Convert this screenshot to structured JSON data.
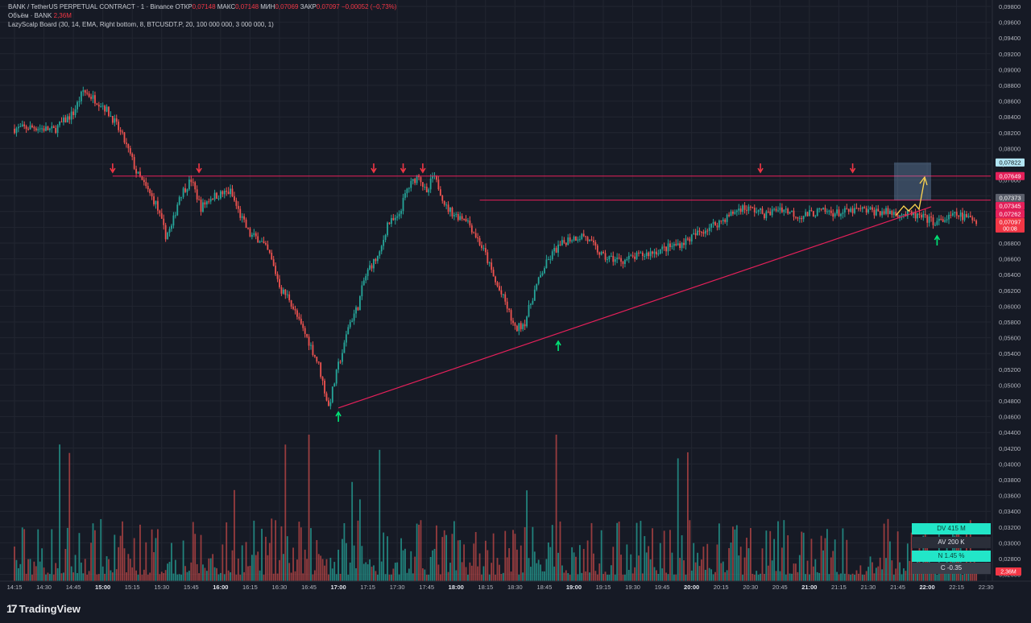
{
  "header": {
    "symbol_line": "BANK / TetherUS PERPETUAL CONTRACT · 1 · Binance",
    "open_label": "ОТКР",
    "open_value": "0,07148",
    "high_label": "МАКС",
    "high_value": "0,07148",
    "low_label": "МИН",
    "low_value": "0,07069",
    "close_label": "ЗАКР",
    "close_value": "0,07097",
    "change": "−0,00052 (−0,73%)",
    "volume_label": "Объём · BANK",
    "volume_value": "2,36M",
    "indicator_line": "LazyScalp Board (30, 14, EMA, Right bottom, 8, BTCUSDT.P, 20, 100 000 000, 3 000 000, 1)"
  },
  "chart_data": {
    "type": "candlestick",
    "symbol": "BANK / TetherUS PERPETUAL CONTRACT",
    "interval": "1",
    "exchange": "Binance",
    "ylim": [
      0.0445,
      0.099
    ],
    "y_ticks": [
      "0,09800",
      "0,09600",
      "0,09400",
      "0,09200",
      "0,09000",
      "0,08800",
      "0,08600",
      "0,08400",
      "0,08200",
      "0,08000",
      "0,07800",
      "0,07600",
      "0,07400",
      "0,07200",
      "0,07000",
      "0,06800",
      "0,06600",
      "0,06400",
      "0,06200",
      "0,06000",
      "0,05800",
      "0,05600",
      "0,05400",
      "0,05200",
      "0,05000",
      "0,04800",
      "0,04600",
      "0,04400",
      "0,04200",
      "0,04000",
      "0,03800",
      "0,03600",
      "0,03400",
      "0,03200",
      "0,03000",
      "0,02800",
      "0,02600"
    ],
    "x_ticks": [
      "14:15",
      "14:30",
      "14:45",
      "15:00",
      "15:15",
      "15:30",
      "15:45",
      "16:00",
      "16:15",
      "16:30",
      "16:45",
      "17:00",
      "17:15",
      "17:30",
      "17:45",
      "18:00",
      "18:15",
      "18:30",
      "18:45",
      "19:00",
      "19:15",
      "19:30",
      "19:45",
      "20:00",
      "20:15",
      "20:30",
      "20:45",
      "21:00",
      "21:15",
      "21:30",
      "21:45",
      "22:00",
      "22:15",
      "22:30"
    ],
    "bold_x_ticks": [
      "15:00",
      "16:00",
      "17:00",
      "18:00",
      "19:00",
      "20:00",
      "21:00",
      "22:00"
    ],
    "price_path_minutes": [
      0,
      10,
      20,
      30,
      35,
      45,
      50,
      55,
      60,
      62,
      67,
      72,
      77,
      80,
      84,
      90,
      95,
      100,
      105,
      110,
      115,
      120,
      125,
      130,
      136,
      140,
      145,
      150,
      155,
      160,
      165,
      168,
      170,
      175,
      178,
      181,
      186,
      190,
      195,
      200,
      206,
      210,
      213,
      216,
      220,
      225,
      230,
      236,
      240,
      245,
      250,
      255,
      260,
      265,
      270,
      275,
      282,
      290,
      300,
      310,
      320,
      330,
      340,
      350,
      360,
      370,
      377,
      383,
      390,
      400,
      410,
      420,
      430,
      440,
      450,
      460,
      465,
      470,
      480,
      485,
      490
    ],
    "price_path_values": [
      0.0825,
      0.0827,
      0.0823,
      0.0845,
      0.0873,
      0.0855,
      0.0838,
      0.0815,
      0.0785,
      0.077,
      0.075,
      0.073,
      0.069,
      0.07,
      0.074,
      0.076,
      0.0725,
      0.0738,
      0.0742,
      0.0745,
      0.0715,
      0.069,
      0.0685,
      0.0665,
      0.062,
      0.061,
      0.058,
      0.0555,
      0.0525,
      0.0472,
      0.0525,
      0.055,
      0.0575,
      0.06,
      0.0632,
      0.065,
      0.0665,
      0.0705,
      0.071,
      0.0748,
      0.0768,
      0.074,
      0.0765,
      0.0752,
      0.0725,
      0.0715,
      0.0712,
      0.0685,
      0.0665,
      0.063,
      0.0605,
      0.057,
      0.058,
      0.062,
      0.065,
      0.067,
      0.0685,
      0.069,
      0.0662,
      0.0658,
      0.0665,
      0.0672,
      0.068,
      0.0695,
      0.0708,
      0.0725,
      0.0722,
      0.0716,
      0.0725,
      0.0714,
      0.072,
      0.0718,
      0.0722,
      0.072,
      0.0718,
      0.0714,
      0.071,
      0.0706,
      0.0716,
      0.0712,
      0.07097
    ],
    "volume_max_label": "0,04400",
    "price_labels": [
      {
        "value": 0.07822,
        "text": "0,07822",
        "bg": "#b2e5f3",
        "fg": "#101418"
      },
      {
        "value": 0.07649,
        "text": "0,07649",
        "bg": "#e5205a",
        "fg": "#ffffff"
      },
      {
        "value": 0.07373,
        "text": "0,07373",
        "bg": "#5b5f6b",
        "fg": "#ffffff"
      },
      {
        "value": 0.07345,
        "text": "0,07345",
        "bg": "#e5205a",
        "fg": "#ffffff"
      },
      {
        "value": 0.07262,
        "text": "0,07262",
        "bg": "#e5205a",
        "fg": "#ffffff"
      },
      {
        "value": 0.07097,
        "text": "0,07097",
        "bg": "#f23645",
        "fg": "#ffffff",
        "sub": "00:08"
      }
    ],
    "resistance_levels": [
      0.07649,
      0.07345
    ],
    "support_trendline": {
      "start": {
        "minute": 165,
        "value": 0.0471
      },
      "end": {
        "minute": 470,
        "value": 0.072
      }
    },
    "down_arrow_minutes": [
      50,
      94,
      183,
      198,
      208,
      380,
      427
    ],
    "up_arrow_minutes": [
      165,
      277,
      470
    ],
    "colors": {
      "up": "#26a69a",
      "down": "#ef5350",
      "level": "#e5205a",
      "projection": "#ffd54f",
      "background": "#161a25",
      "grid": "#222631",
      "axis_text": "#b2b5be"
    }
  },
  "lazyscalp": {
    "dv": "DV 415 M",
    "av": "AV 200 K",
    "n": "N 1.45 %",
    "c": "C -0.35"
  },
  "volume_badge": "2,36M",
  "brand": {
    "name": "TradingView",
    "mark": "17"
  }
}
